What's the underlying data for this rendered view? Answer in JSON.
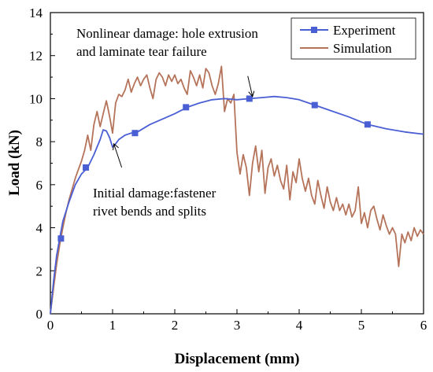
{
  "chart_data": {
    "type": "line",
    "title": "",
    "xlabel": "Displacement (mm)",
    "ylabel": "Load (kN)",
    "xlim": [
      0,
      6
    ],
    "ylim": [
      0,
      14
    ],
    "xticks": [
      "0",
      "1",
      "2",
      "3",
      "4",
      "5",
      "6"
    ],
    "yticks": [
      "0",
      "2",
      "4",
      "6",
      "8",
      "10",
      "12",
      "14"
    ],
    "grid": false,
    "legend": "top-right",
    "series": [
      {
        "name": "Experiment",
        "color": "#4a5fd4",
        "marker": "square",
        "x": [
          0,
          0.05,
          0.1,
          0.15,
          0.2,
          0.3,
          0.4,
          0.5,
          0.6,
          0.7,
          0.8,
          0.85,
          0.9,
          0.95,
          1.0,
          1.05,
          1.1,
          1.2,
          1.3,
          1.4,
          1.6,
          1.8,
          2.0,
          2.2,
          2.4,
          2.6,
          2.8,
          3.0,
          3.2,
          3.4,
          3.6,
          3.8,
          4.0,
          4.25,
          4.5,
          4.8,
          5.1,
          5.4,
          5.7,
          6.0
        ],
        "y": [
          0,
          1.5,
          2.7,
          3.5,
          4.3,
          5.2,
          6.0,
          6.5,
          6.8,
          7.4,
          8.1,
          8.55,
          8.5,
          8.2,
          7.75,
          7.9,
          8.1,
          8.3,
          8.4,
          8.45,
          8.8,
          9.05,
          9.3,
          9.6,
          9.8,
          9.95,
          10.0,
          9.95,
          10.0,
          10.05,
          10.1,
          10.05,
          9.95,
          9.7,
          9.45,
          9.15,
          8.8,
          8.6,
          8.45,
          8.35
        ],
        "marker_x": [
          0.17,
          0.57,
          1.36,
          2.18,
          3.2,
          4.25,
          5.1
        ],
        "marker_y": [
          3.5,
          6.8,
          8.4,
          9.6,
          10.0,
          9.7,
          8.8
        ]
      },
      {
        "name": "Simulation",
        "color": "#b5735a",
        "marker": "none",
        "x": [
          0,
          0.05,
          0.1,
          0.15,
          0.2,
          0.25,
          0.3,
          0.35,
          0.4,
          0.45,
          0.5,
          0.55,
          0.6,
          0.65,
          0.7,
          0.75,
          0.8,
          0.85,
          0.9,
          0.95,
          1.0,
          1.05,
          1.1,
          1.15,
          1.2,
          1.25,
          1.3,
          1.35,
          1.4,
          1.45,
          1.5,
          1.55,
          1.6,
          1.65,
          1.7,
          1.75,
          1.8,
          1.85,
          1.9,
          1.95,
          2.0,
          2.05,
          2.1,
          2.15,
          2.2,
          2.25,
          2.3,
          2.35,
          2.4,
          2.45,
          2.5,
          2.55,
          2.6,
          2.65,
          2.7,
          2.75,
          2.8,
          2.85,
          2.9,
          2.95,
          3.0,
          3.05,
          3.1,
          3.15,
          3.2,
          3.25,
          3.3,
          3.35,
          3.4,
          3.45,
          3.5,
          3.55,
          3.6,
          3.65,
          3.7,
          3.75,
          3.8,
          3.85,
          3.9,
          3.95,
          4.0,
          4.05,
          4.1,
          4.15,
          4.2,
          4.25,
          4.3,
          4.35,
          4.4,
          4.45,
          4.5,
          4.55,
          4.6,
          4.65,
          4.7,
          4.75,
          4.8,
          4.85,
          4.9,
          4.95,
          5.0,
          5.05,
          5.1,
          5.15,
          5.2,
          5.25,
          5.3,
          5.35,
          5.4,
          5.45,
          5.5,
          5.55,
          5.6,
          5.65,
          5.7,
          5.75,
          5.8,
          5.85,
          5.9,
          5.95,
          6.0
        ],
        "y": [
          0,
          1.2,
          2.3,
          3.2,
          4.0,
          4.7,
          5.3,
          5.8,
          6.3,
          6.7,
          7.1,
          7.6,
          8.3,
          7.6,
          8.8,
          9.4,
          8.7,
          9.3,
          9.9,
          9.2,
          8.4,
          9.8,
          10.2,
          10.1,
          10.4,
          10.9,
          10.3,
          10.7,
          11.0,
          10.6,
          10.9,
          11.1,
          10.5,
          10.0,
          10.9,
          11.2,
          11.0,
          10.6,
          11.1,
          10.8,
          11.1,
          10.7,
          10.9,
          10.5,
          10.2,
          11.3,
          11.0,
          10.6,
          11.1,
          10.5,
          11.4,
          11.2,
          10.6,
          10.2,
          10.7,
          11.5,
          9.4,
          10.0,
          9.8,
          10.2,
          7.5,
          6.5,
          7.4,
          6.8,
          5.5,
          7.0,
          7.8,
          6.6,
          7.6,
          5.6,
          6.8,
          7.2,
          6.4,
          6.9,
          6.2,
          5.8,
          6.9,
          5.3,
          6.6,
          6.1,
          7.2,
          6.3,
          5.7,
          6.3,
          5.5,
          5.1,
          6.2,
          5.5,
          4.9,
          5.9,
          5.2,
          4.8,
          5.4,
          4.8,
          5.1,
          4.6,
          5.1,
          4.5,
          4.8,
          5.9,
          4.2,
          4.7,
          4.0,
          4.8,
          5.0,
          4.4,
          3.9,
          4.6,
          4.1,
          3.7,
          4.0,
          3.7,
          2.2,
          3.7,
          3.3,
          3.8,
          3.4,
          4.0,
          3.6,
          3.9,
          3.7
        ]
      }
    ],
    "annotations": [
      {
        "lines": [
          "Nonlinear damage: hole extrusion",
          "and laminate tear failure"
        ],
        "arrow_x": 3.25,
        "arrow_y": 10.1
      },
      {
        "lines": [
          "Initial damage:fastener",
          "rivet bends and splits"
        ],
        "arrow_x": 1.02,
        "arrow_y": 7.9
      }
    ]
  }
}
